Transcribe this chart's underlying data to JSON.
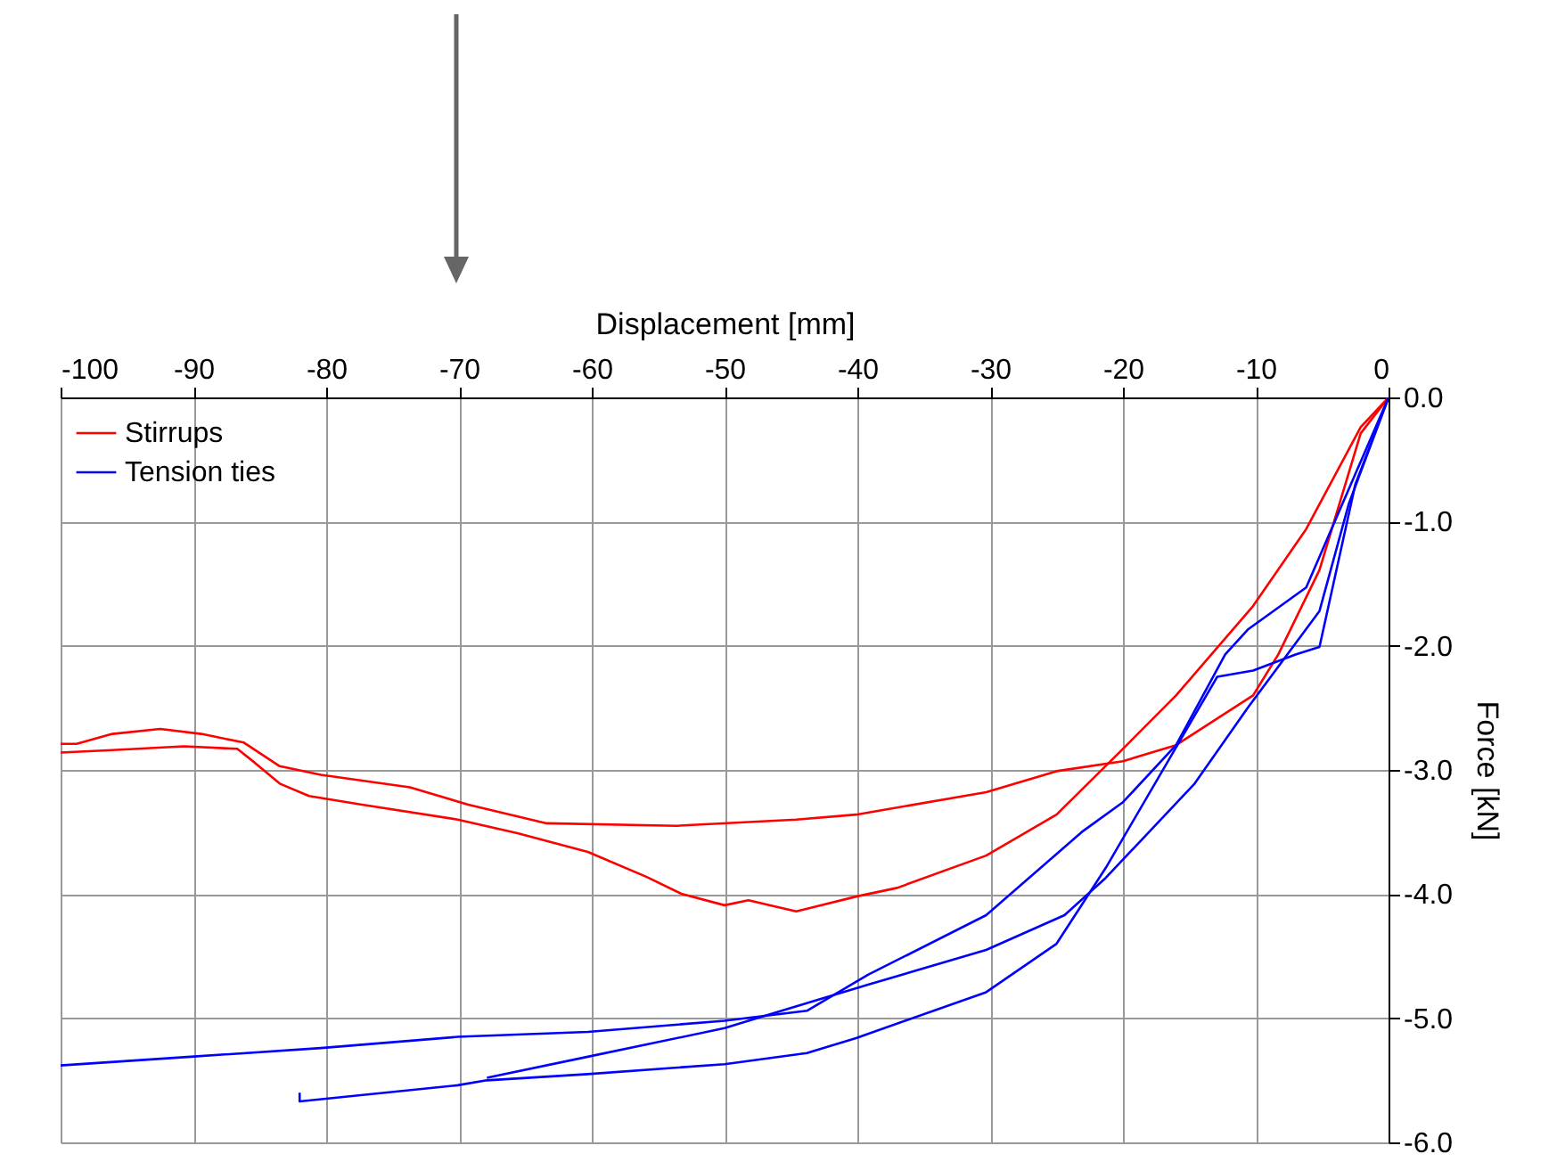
{
  "chart_data": {
    "type": "line",
    "xlabel": "Displacement [mm]",
    "ylabel": "Force [kN]",
    "xlim": [
      -100,
      0
    ],
    "xticks": [
      -100,
      -90,
      -80,
      -70,
      -60,
      -50,
      -40,
      -30,
      -20,
      -10,
      0
    ],
    "ylim": [
      -6,
      0
    ],
    "yticks": [
      {
        "value": 0,
        "label": "0.0"
      },
      {
        "value": -1,
        "label": "-1.0"
      },
      {
        "value": -2,
        "label": "-2.0"
      },
      {
        "value": -3,
        "label": "-3.0"
      },
      {
        "value": -4,
        "label": "-4.0"
      },
      {
        "value": -5,
        "label": "-5.0"
      },
      {
        "value": -6,
        "label": "-6.0"
      }
    ],
    "grid": true,
    "legend": "top left",
    "series": [
      {
        "name": "Stirrups",
        "color": "#ff0000",
        "x": [
          0,
          -2.1,
          -6.2,
          -10.2,
          -16,
          -20,
          -25,
          -30.3,
          -37,
          -40.1,
          -44.6,
          -48.2,
          -50,
          -53.2,
          -55.9,
          -60.3,
          -65.6,
          -70.1,
          -77.3,
          -81.3,
          -83.5,
          -85.4,
          -86.7,
          -90.7,
          -96.1,
          -100
        ],
        "values": [
          0,
          -0.24,
          -1.06,
          -1.68,
          -2.4,
          -2.83,
          -3.36,
          -3.69,
          -3.95,
          -4.02,
          -4.14,
          -4.05,
          -4.09,
          -4.0,
          -3.86,
          -3.66,
          -3.51,
          -3.4,
          -3.28,
          -3.21,
          -3.11,
          -2.94,
          -2.83,
          -2.81,
          -2.84,
          -2.86
        ]
      },
      {
        "color": "#ff0000",
        "x": [
          -100,
          -98.8,
          -96.1,
          -92.5,
          -89.4,
          -86.2,
          -83.5,
          -80.4,
          -73.7,
          -69.3,
          -63.4,
          -53.6,
          -44.6,
          -40.1,
          -30.3,
          -25,
          -20,
          -16,
          -10.2,
          -8.3,
          -5.2,
          -2.1,
          0
        ],
        "values": [
          -2.79,
          -2.79,
          -2.71,
          -2.67,
          -2.71,
          -2.78,
          -2.97,
          -3.04,
          -3.14,
          -3.28,
          -3.43,
          -3.45,
          -3.4,
          -3.36,
          -3.18,
          -3.01,
          -2.93,
          -2.8,
          -2.4,
          -2.07,
          -1.39,
          -0.29,
          0
        ]
      },
      {
        "name": "Tension ties",
        "color": "#0000ff",
        "x": [
          0,
          -6.2,
          -10.6,
          -12.3,
          -16,
          -20,
          -23.1,
          -30.3,
          -39.2,
          -43.8,
          -50,
          -60.3,
          -70.1,
          -80.4,
          -90.2,
          -100
        ],
        "values": [
          0,
          -1.53,
          -1.87,
          -2.07,
          -2.8,
          -3.26,
          -3.5,
          -4.17,
          -4.65,
          -4.94,
          -5.02,
          -5.11,
          -5.15,
          -5.24,
          -5.31,
          -5.38
        ]
      },
      {
        "color": "#0000ff",
        "x": [
          -82,
          -82,
          -70.1,
          -67.9,
          -60.3,
          -50,
          -43.8,
          -40.1,
          -30.3,
          -25,
          -21.3,
          -12.9,
          -10.2,
          -7,
          -5.2,
          -2.5,
          0
        ],
        "values": [
          -5.6,
          -5.67,
          -5.54,
          -5.5,
          -5.45,
          -5.37,
          -5.28,
          -5.16,
          -4.79,
          -4.4,
          -3.79,
          -2.25,
          -2.2,
          -2.07,
          -2.01,
          -0.7,
          0
        ]
      },
      {
        "color": "#0000ff",
        "x": [
          0,
          -3,
          -5.2,
          -10.6,
          -14.6,
          -21.3,
          -24.4,
          -30.3,
          -39.2,
          -48.2,
          -50,
          -60.3,
          -67.9
        ],
        "values": [
          0,
          -0.86,
          -1.72,
          -2.5,
          -3.11,
          -3.87,
          -4.17,
          -4.45,
          -4.73,
          -5.02,
          -5.08,
          -5.31,
          -5.48
        ]
      }
    ]
  }
}
